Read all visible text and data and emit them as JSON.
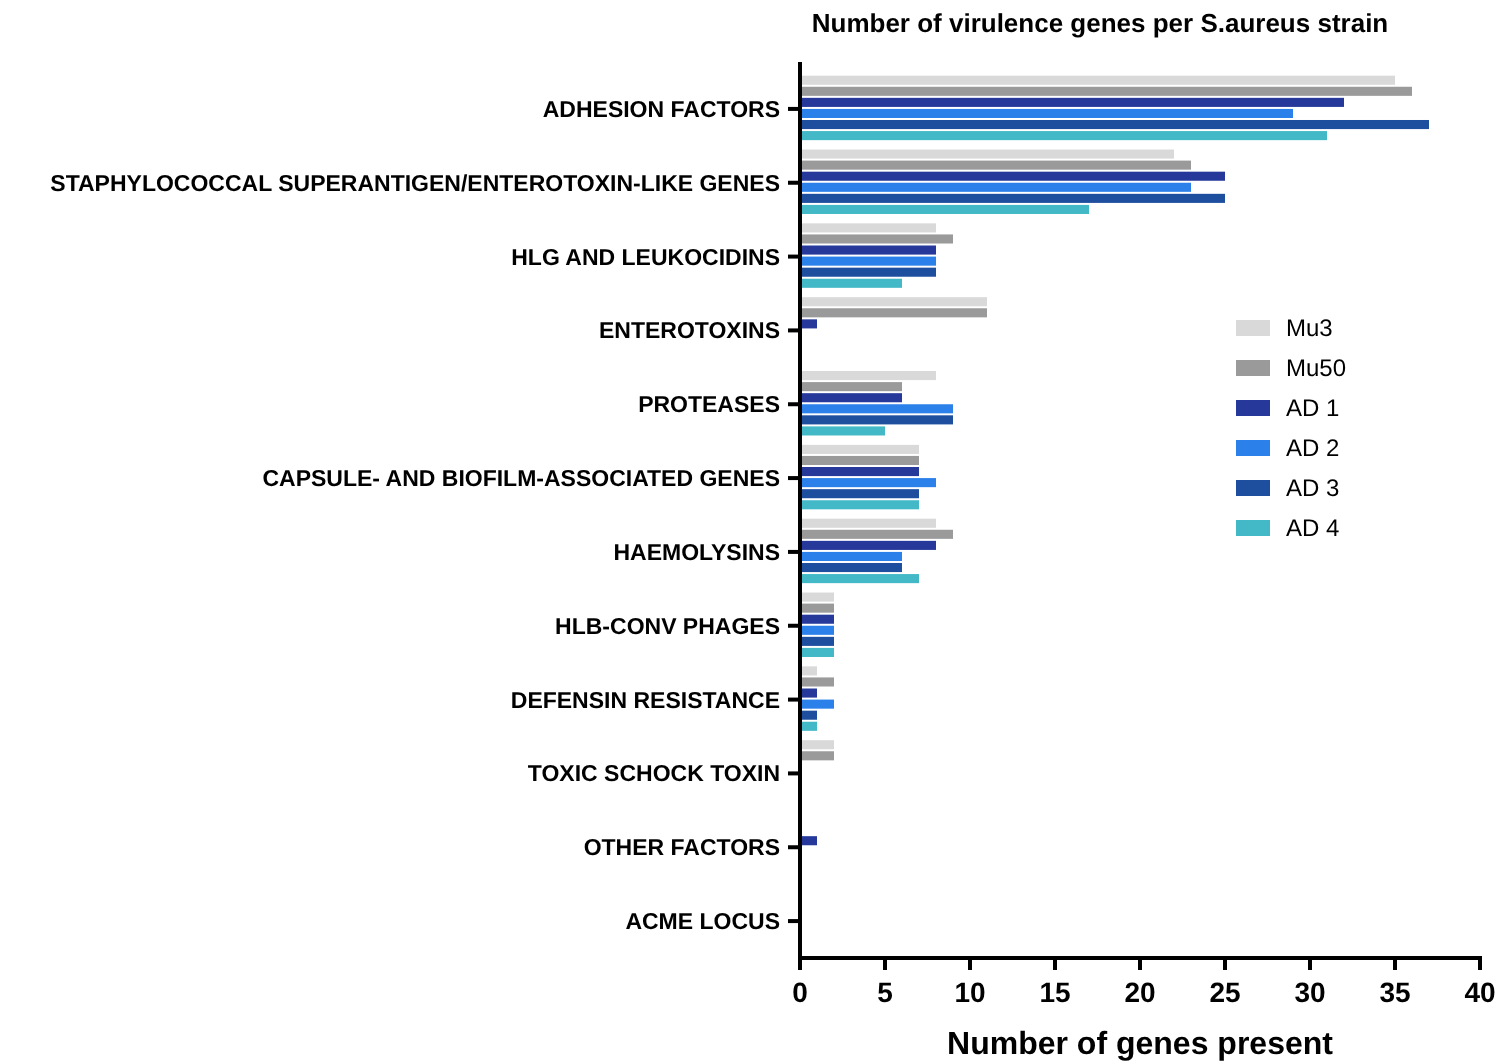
{
  "chart_data": {
    "type": "bar",
    "orientation": "horizontal",
    "title": "Number of virulence genes per S.aureus strain",
    "xlabel": "Number of genes present",
    "categories": [
      "ADHESION FACTORS",
      "STAPHYLOCOCCAL SUPERANTIGEN/ENTEROTOXIN-LIKE GENES",
      "HLG AND LEUKOCIDINS",
      "ENTEROTOXINS",
      "PROTEASES",
      "CAPSULE- AND BIOFILM-ASSOCIATED GENES",
      "HAEMOLYSINS",
      "HLB-CONV PHAGES",
      "DEFENSIN RESISTANCE",
      "TOXIC SCHOCK TOXIN",
      "OTHER FACTORS",
      "ACME LOCUS"
    ],
    "series": [
      {
        "name": "Mu3",
        "color": "#d9d9d9",
        "values": [
          35,
          22,
          8,
          11,
          8,
          7,
          8,
          2,
          1,
          2,
          0,
          0
        ]
      },
      {
        "name": "Mu50",
        "color": "#9a9a9a",
        "values": [
          36,
          23,
          9,
          11,
          6,
          7,
          9,
          2,
          2,
          2,
          0,
          0
        ]
      },
      {
        "name": "AD 1",
        "color": "#26399a",
        "values": [
          32,
          25,
          8,
          1,
          6,
          7,
          8,
          2,
          1,
          0,
          1,
          0
        ]
      },
      {
        "name": "AD 2",
        "color": "#2b80ea",
        "values": [
          29,
          23,
          8,
          0,
          9,
          8,
          6,
          2,
          2,
          0,
          0,
          0
        ]
      },
      {
        "name": "AD 3",
        "color": "#1d4f9e",
        "values": [
          37,
          25,
          8,
          0,
          9,
          7,
          6,
          2,
          1,
          0,
          0,
          0
        ]
      },
      {
        "name": "AD 4",
        "color": "#43b9c7",
        "values": [
          31,
          17,
          6,
          0,
          5,
          7,
          7,
          2,
          1,
          0,
          0,
          0
        ]
      }
    ],
    "xlim": [
      0,
      40
    ],
    "xticks": [
      0,
      5,
      10,
      15,
      20,
      25,
      30,
      35,
      40
    ],
    "legend": "right"
  }
}
